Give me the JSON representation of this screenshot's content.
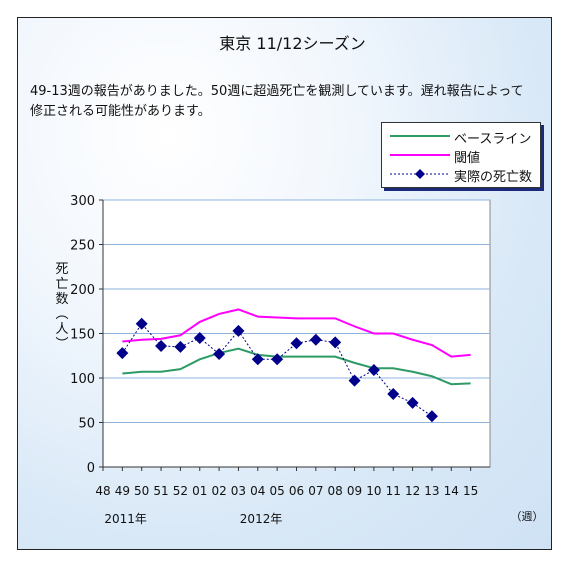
{
  "chart_data": {
    "type": "line",
    "title": "東京 11/12シーズン",
    "subtitle": "49-13週の報告がありました。50週に超過死亡を観測しています。遅れ報告によって修正される可能性があります。",
    "ylabel": "死亡数（人）",
    "xlabel": "（週）",
    "ylim": [
      0,
      300
    ],
    "yticks": [
      0,
      50,
      100,
      150,
      200,
      250,
      300
    ],
    "categories": [
      "48",
      "49",
      "50",
      "51",
      "52",
      "01",
      "02",
      "03",
      "04",
      "05",
      "06",
      "07",
      "08",
      "09",
      "10",
      "11",
      "12",
      "13",
      "14",
      "15"
    ],
    "year_labels": [
      {
        "label": "2011年",
        "at": "49"
      },
      {
        "label": "2012年",
        "at": "04"
      }
    ],
    "legend_position": "top-right",
    "grid": true,
    "series": [
      {
        "name": "ベースライン",
        "color": "#2e9b65",
        "style": "solid",
        "values": [
          null,
          105,
          107,
          107,
          110,
          121,
          128,
          133,
          126,
          124,
          124,
          124,
          124,
          117,
          111,
          111,
          107,
          102,
          93,
          94
        ]
      },
      {
        "name": "閾値",
        "color": "#ff00ff",
        "style": "solid",
        "values": [
          null,
          141,
          143,
          144,
          148,
          163,
          172,
          177,
          169,
          168,
          167,
          167,
          167,
          158,
          150,
          150,
          143,
          137,
          124,
          126
        ]
      },
      {
        "name": "実際の死亡数",
        "color": "#00008b",
        "style": "dotted",
        "marker": "diamond",
        "values": [
          null,
          128,
          161,
          136,
          135,
          145,
          127,
          153,
          121,
          121,
          139,
          143,
          140,
          97,
          109,
          82,
          72,
          57,
          null,
          null
        ]
      }
    ]
  }
}
